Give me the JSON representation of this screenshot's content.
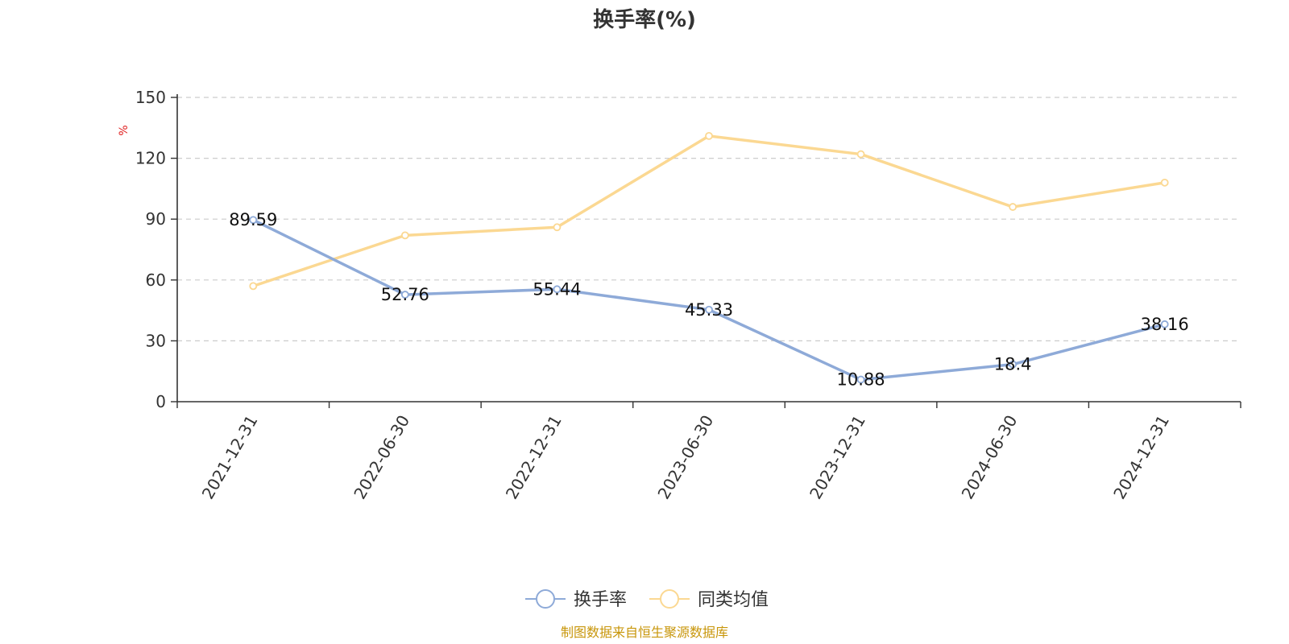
{
  "chart_data": {
    "type": "line",
    "title": "换手率(%)",
    "ylabel": "%",
    "ylim": [
      0,
      150
    ],
    "yticks": [
      0,
      30,
      60,
      90,
      120,
      150
    ],
    "grid": true,
    "categories": [
      "2021-12-31",
      "2022-06-30",
      "2022-12-31",
      "2023-06-30",
      "2023-12-31",
      "2024-06-30",
      "2024-12-31"
    ],
    "series": [
      {
        "name": "换手率",
        "color": "#8eaad8",
        "values": [
          89.59,
          52.76,
          55.44,
          45.33,
          10.88,
          18.4,
          38.16
        ],
        "labels": [
          "89.59",
          "52.76",
          "55.44",
          "45.33",
          "10.88",
          "18.4",
          "38.16"
        ]
      },
      {
        "name": "同类均值",
        "color": "#fbd892",
        "values": [
          57,
          82,
          86,
          131,
          122,
          96,
          108
        ]
      }
    ],
    "legend_position": "bottom-center",
    "unit_color": "#e02020"
  },
  "source": {
    "text": "制图数据来自恒生聚源数据库",
    "color": "#c8960a"
  }
}
